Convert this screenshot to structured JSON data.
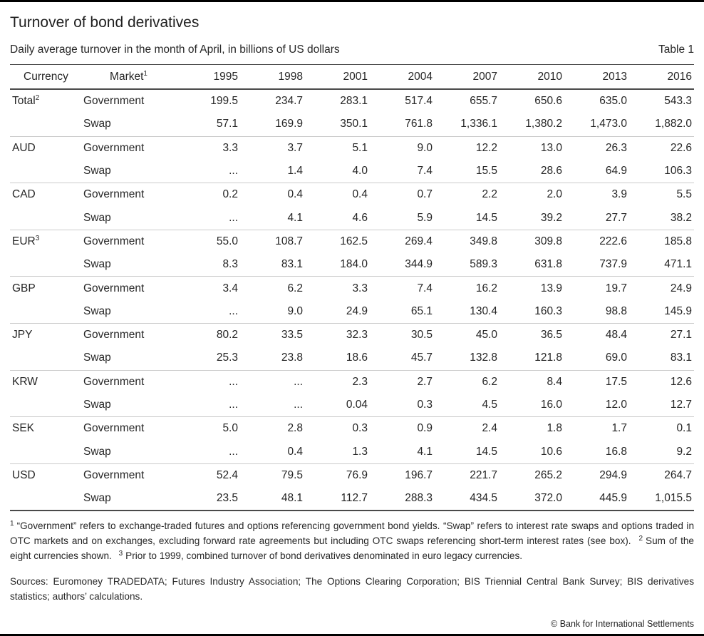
{
  "chart_data": {
    "type": "table",
    "title": "Turnover of bond derivatives",
    "subtitle": "Daily average turnover in the month of April, in billions of US dollars",
    "table_label": "Table 1",
    "currency_header": "Currency",
    "market_header": {
      "text": "Market",
      "sup": "1"
    },
    "years": [
      "1995",
      "1998",
      "2001",
      "2004",
      "2007",
      "2010",
      "2013",
      "2016"
    ],
    "groups": [
      {
        "currency": "Total",
        "sup": "2",
        "rows": [
          {
            "market": "Government",
            "values": [
              "199.5",
              "234.7",
              "283.1",
              "517.4",
              "655.7",
              "650.6",
              "635.0",
              "543.3"
            ]
          },
          {
            "market": "Swap",
            "values": [
              "57.1",
              "169.9",
              "350.1",
              "761.8",
              "1,336.1",
              "1,380.2",
              "1,473.0",
              "1,882.0"
            ]
          }
        ]
      },
      {
        "currency": "AUD",
        "sup": "",
        "rows": [
          {
            "market": "Government",
            "values": [
              "3.3",
              "3.7",
              "5.1",
              "9.0",
              "12.2",
              "13.0",
              "26.3",
              "22.6"
            ]
          },
          {
            "market": "Swap",
            "values": [
              "...",
              "1.4",
              "4.0",
              "7.4",
              "15.5",
              "28.6",
              "64.9",
              "106.3"
            ]
          }
        ]
      },
      {
        "currency": "CAD",
        "sup": "",
        "rows": [
          {
            "market": "Government",
            "values": [
              "0.2",
              "0.4",
              "0.4",
              "0.7",
              "2.2",
              "2.0",
              "3.9",
              "5.5"
            ]
          },
          {
            "market": "Swap",
            "values": [
              "...",
              "4.1",
              "4.6",
              "5.9",
              "14.5",
              "39.2",
              "27.7",
              "38.2"
            ]
          }
        ]
      },
      {
        "currency": "EUR",
        "sup": "3",
        "rows": [
          {
            "market": "Government",
            "values": [
              "55.0",
              "108.7",
              "162.5",
              "269.4",
              "349.8",
              "309.8",
              "222.6",
              "185.8"
            ]
          },
          {
            "market": "Swap",
            "values": [
              "8.3",
              "83.1",
              "184.0",
              "344.9",
              "589.3",
              "631.8",
              "737.9",
              "471.1"
            ]
          }
        ]
      },
      {
        "currency": "GBP",
        "sup": "",
        "rows": [
          {
            "market": "Government",
            "values": [
              "3.4",
              "6.2",
              "3.3",
              "7.4",
              "16.2",
              "13.9",
              "19.7",
              "24.9"
            ]
          },
          {
            "market": "Swap",
            "values": [
              "...",
              "9.0",
              "24.9",
              "65.1",
              "130.4",
              "160.3",
              "98.8",
              "145.9"
            ]
          }
        ]
      },
      {
        "currency": "JPY",
        "sup": "",
        "rows": [
          {
            "market": "Government",
            "values": [
              "80.2",
              "33.5",
              "32.3",
              "30.5",
              "45.0",
              "36.5",
              "48.4",
              "27.1"
            ]
          },
          {
            "market": "Swap",
            "values": [
              "25.3",
              "23.8",
              "18.6",
              "45.7",
              "132.8",
              "121.8",
              "69.0",
              "83.1"
            ]
          }
        ]
      },
      {
        "currency": "KRW",
        "sup": "",
        "rows": [
          {
            "market": "Government",
            "values": [
              "...",
              "...",
              "2.3",
              "2.7",
              "6.2",
              "8.4",
              "17.5",
              "12.6"
            ]
          },
          {
            "market": "Swap",
            "values": [
              "...",
              "...",
              "0.04",
              "0.3",
              "4.5",
              "16.0",
              "12.0",
              "12.7"
            ]
          }
        ]
      },
      {
        "currency": "SEK",
        "sup": "",
        "rows": [
          {
            "market": "Government",
            "values": [
              "5.0",
              "2.8",
              "0.3",
              "0.9",
              "2.4",
              "1.8",
              "1.7",
              "0.1"
            ]
          },
          {
            "market": "Swap",
            "values": [
              "...",
              "0.4",
              "1.3",
              "4.1",
              "14.5",
              "10.6",
              "16.8",
              "9.2"
            ]
          }
        ]
      },
      {
        "currency": "USD",
        "sup": "",
        "rows": [
          {
            "market": "Government",
            "values": [
              "52.4",
              "79.5",
              "76.9",
              "196.7",
              "221.7",
              "265.2",
              "294.9",
              "264.7"
            ]
          },
          {
            "market": "Swap",
            "values": [
              "23.5",
              "48.1",
              "112.7",
              "288.3",
              "434.5",
              "372.0",
              "445.9",
              "1,015.5"
            ]
          }
        ]
      }
    ],
    "footnotes": [
      {
        "sup": "1",
        "text": "“Government” refers to exchange-traded futures and options referencing government bond yields. “Swap” refers to interest rate swaps and options traded in OTC markets and on exchanges, excluding forward rate agreements but including OTC swaps referencing short-term interest rates (see box)."
      },
      {
        "sup": "2",
        "text": "Sum of the eight currencies shown."
      },
      {
        "sup": "3",
        "text": "Prior to 1999, combined turnover of bond derivatives denominated in euro legacy currencies."
      }
    ],
    "sources": "Sources: Euromoney TRADEDATA; Futures Industry Association; The Options Clearing Corporation; BIS Triennial Central Bank Survey; BIS derivatives statistics; authors’ calculations.",
    "copyright": "© Bank for International Settlements",
    "colors": {
      "text": "#262626",
      "rule_dark": "#4a4a4a",
      "rule_light": "#cbcbcb",
      "page_border": "#000000"
    }
  }
}
